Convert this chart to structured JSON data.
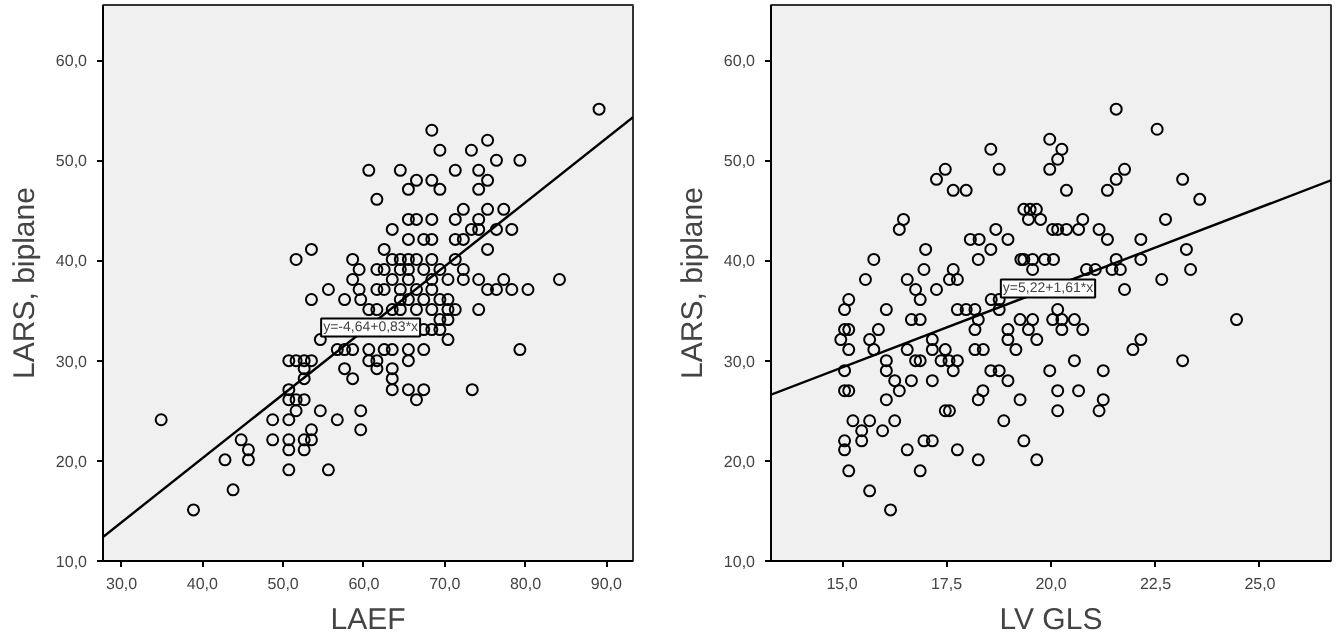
{
  "chart_data": [
    {
      "type": "scatter",
      "xlabel": "LAEF",
      "ylabel": "LARS, biplane",
      "grid": false,
      "xlim": [
        27.7,
        93.3
      ],
      "ylim": [
        10,
        65.5
      ],
      "xticks": [
        {
          "value": 30,
          "label": "30,0"
        },
        {
          "value": 40,
          "label": "40,0"
        },
        {
          "value": 50,
          "label": "50,0"
        },
        {
          "value": 60,
          "label": "60,0"
        },
        {
          "value": 70,
          "label": "70,0"
        },
        {
          "value": 80,
          "label": "80,0"
        },
        {
          "value": 90,
          "label": "90,0"
        }
      ],
      "yticks": [
        {
          "value": 10,
          "label": "10,0"
        },
        {
          "value": 20,
          "label": "20,0"
        },
        {
          "value": 30,
          "label": "30,0"
        },
        {
          "value": 40,
          "label": "40,0"
        },
        {
          "value": 50,
          "label": "50,0"
        },
        {
          "value": 60,
          "label": "60,0"
        }
      ],
      "annotations": [
        {
          "text": "y=-4,64+0,83*x",
          "x": 54.7,
          "y": 33.3
        }
      ],
      "series": [
        {
          "marker": "circle",
          "color": "#000000",
          "x": [
            89.1,
            68.4,
            69.4,
            75.3,
            73.3,
            76.4,
            79.3,
            60.6,
            64.5,
            66.5,
            68.4,
            71.3,
            74.2,
            75.3,
            65.5,
            69.4,
            74.2,
            61.6,
            72.3,
            75.3,
            77.3,
            65.5,
            66.5,
            68.4,
            71.3,
            74.2,
            63.5,
            65.5,
            67.4,
            68.4,
            71.3,
            72.3,
            73.3,
            74.2,
            76.4,
            78.3,
            51.6,
            53.5,
            62.5,
            75.3,
            58.6,
            63.5,
            64.5,
            65.5,
            66.5,
            68.4,
            71.3,
            59.4,
            61.6,
            62.5,
            64.5,
            65.5,
            67.4,
            69.4,
            72.3,
            58.6,
            63.5,
            65.5,
            68.4,
            70.4,
            72.3,
            74.2,
            77.3,
            84.2,
            55.6,
            59.4,
            61.6,
            62.5,
            64.5,
            66.5,
            68.4,
            75.3,
            76.4,
            78.3,
            80.3,
            53.5,
            57.6,
            59.6,
            64.5,
            65.5,
            67.4,
            69.4,
            70.4,
            60.6,
            61.6,
            64.5,
            66.5,
            70.4,
            74.2,
            63.5,
            68.4,
            71.3,
            67.4,
            68.4,
            69.4,
            70.4,
            69.4,
            54.6,
            70.4,
            56.7,
            57.6,
            58.6,
            60.6,
            62.5,
            63.5,
            65.5,
            67.4,
            79.3,
            50.7,
            51.6,
            52.6,
            53.5,
            60.6,
            61.6,
            65.5,
            52.6,
            57.6,
            61.6,
            63.5,
            52.6,
            58.6,
            63.5,
            50.7,
            63.5,
            65.5,
            67.4,
            73.4,
            50.7,
            51.6,
            52.6,
            66.5,
            51.6,
            54.6,
            59.6,
            34.9,
            48.7,
            50.7,
            56.7,
            53.5,
            59.6,
            44.8,
            48.7,
            50.7,
            52.6,
            53.5,
            45.7,
            50.7,
            52.6,
            42.8,
            45.7,
            50.7,
            55.6,
            43.8,
            38.9
          ],
          "values": [
            55.1,
            53.0,
            51.0,
            52.0,
            51.0,
            50.0,
            50.0,
            49.0,
            49.0,
            48.0,
            48.0,
            49.0,
            49.0,
            48.0,
            47.1,
            47.1,
            47.1,
            46.1,
            45.1,
            45.1,
            45.1,
            44.1,
            44.1,
            44.1,
            44.1,
            44.1,
            43.1,
            42.1,
            42.1,
            42.1,
            42.1,
            42.1,
            43.1,
            43.1,
            43.1,
            43.1,
            40.1,
            41.1,
            41.1,
            41.1,
            40.1,
            40.1,
            40.1,
            40.1,
            40.1,
            40.1,
            40.1,
            39.1,
            39.1,
            39.1,
            39.1,
            39.1,
            39.1,
            39.1,
            39.1,
            38.1,
            38.1,
            38.1,
            38.1,
            38.1,
            38.1,
            38.1,
            38.1,
            38.1,
            37.1,
            37.1,
            37.1,
            37.1,
            37.1,
            37.1,
            37.1,
            37.1,
            37.1,
            37.1,
            37.1,
            36.1,
            36.1,
            36.1,
            36.1,
            36.1,
            36.1,
            36.1,
            36.1,
            35.1,
            35.1,
            35.1,
            35.1,
            35.1,
            35.1,
            35.1,
            35.1,
            35.1,
            33.1,
            33.1,
            33.1,
            34.1,
            34.1,
            32.1,
            32.1,
            31.1,
            31.1,
            31.1,
            31.1,
            31.1,
            31.1,
            31.1,
            31.1,
            31.1,
            30.0,
            30.0,
            30.0,
            30.0,
            30.0,
            30.0,
            30.0,
            29.2,
            29.2,
            29.2,
            29.2,
            28.2,
            28.2,
            28.2,
            27.1,
            27.1,
            27.1,
            27.1,
            27.1,
            26.1,
            26.1,
            26.1,
            26.1,
            25.0,
            25.0,
            25.0,
            24.1,
            24.1,
            24.1,
            24.1,
            23.1,
            23.1,
            22.1,
            22.1,
            22.1,
            22.1,
            22.1,
            21.1,
            21.1,
            21.1,
            20.1,
            20.1,
            19.1,
            19.1,
            17.1,
            15.1
          ]
        },
        {
          "type": "line",
          "marker": "none",
          "color": "#000000",
          "x": [
            27.7,
            93.3
          ],
          "values": [
            12.4,
            54.3
          ]
        }
      ]
    },
    {
      "type": "scatter",
      "xlabel": "LV GLS",
      "ylabel": "LARS, biplane",
      "grid": false,
      "xlim": [
        13.3,
        26.7
      ],
      "ylim": [
        10,
        65.5
      ],
      "xticks": [
        {
          "value": 15,
          "label": "15,0"
        },
        {
          "value": 17.5,
          "label": "17,5"
        },
        {
          "value": 20,
          "label": "20,0"
        },
        {
          "value": 22.5,
          "label": "22,5"
        },
        {
          "value": 25,
          "label": "25,0"
        }
      ],
      "yticks": [
        {
          "value": 10,
          "label": "10,0"
        },
        {
          "value": 20,
          "label": "20,0"
        },
        {
          "value": 30,
          "label": "30,0"
        },
        {
          "value": 40,
          "label": "40,0"
        },
        {
          "value": 50,
          "label": "50,0"
        },
        {
          "value": 60,
          "label": "60,0"
        }
      ],
      "annotations": [
        {
          "text": "y=5,22+1,61*x",
          "x": 18.8,
          "y": 37.2
        }
      ],
      "series": [
        {
          "marker": "circle",
          "color": "#000000",
          "x": [
            21.56,
            22.54,
            19.97,
            18.56,
            20.26,
            20.16,
            17.47,
            18.76,
            19.97,
            21.76,
            17.26,
            21.56,
            23.15,
            17.66,
            17.97,
            20.37,
            21.35,
            23.56,
            19.35,
            19.5,
            19.65,
            16.47,
            19.46,
            19.75,
            20.76,
            22.74,
            16.37,
            18.68,
            20.04,
            20.16,
            20.37,
            20.66,
            21.15,
            18.07,
            18.28,
            18.97,
            21.35,
            22.15,
            17.0,
            18.56,
            23.24,
            15.76,
            18.26,
            19.28,
            19.35,
            19.56,
            19.85,
            20.06,
            21.56,
            22.15,
            15.56,
            16.56,
            17.57,
            17.76,
            22.65,
            16.96,
            17.66,
            19.56,
            20.85,
            21.06,
            21.46,
            21.66,
            23.34,
            16.76,
            17.26,
            21.76,
            16.87,
            18.57,
            18.76,
            15.06,
            16.06,
            17.76,
            17.97,
            18.18,
            20.16,
            15.16,
            18.76,
            15.06,
            15.16,
            15.87,
            16.66,
            16.87,
            18.18,
            18.26,
            18.97,
            19.26,
            19.56,
            19.46,
            20.04,
            20.26,
            20.56,
            20.76,
            20.26,
            24.44,
            14.97,
            15.66,
            17.16,
            18.97,
            19.66,
            22.15,
            15.16,
            15.76,
            16.56,
            17.16,
            17.47,
            18.18,
            18.38,
            19.16,
            21.96,
            16.06,
            16.76,
            16.87,
            17.37,
            17.56,
            17.76,
            20.56,
            23.15,
            15.06,
            16.06,
            17.66,
            18.56,
            18.76,
            19.97,
            21.25,
            16.26,
            16.66,
            17.16,
            18.97,
            15.06,
            15.16,
            16.37,
            18.37,
            20.16,
            20.66,
            16.06,
            18.26,
            19.26,
            21.25,
            17.47,
            17.57,
            20.16,
            21.15,
            15.26,
            15.66,
            16.26,
            18.87,
            15.47,
            15.97,
            15.06,
            15.47,
            16.96,
            17.16,
            19.35,
            15.06,
            16.56,
            17.76,
            18.26,
            19.66,
            15.16,
            16.87,
            15.66,
            16.16
          ],
          "values": [
            55.1,
            53.1,
            52.1,
            51.1,
            51.1,
            50.1,
            49.1,
            49.1,
            49.1,
            49.1,
            48.1,
            48.1,
            48.1,
            47.0,
            47.0,
            47.0,
            47.0,
            46.1,
            45.1,
            45.1,
            45.1,
            44.1,
            44.1,
            44.1,
            44.1,
            44.1,
            43.1,
            43.1,
            43.1,
            43.1,
            43.1,
            43.1,
            43.1,
            42.1,
            42.1,
            42.1,
            42.1,
            42.1,
            41.1,
            41.1,
            41.1,
            40.1,
            40.1,
            40.1,
            40.1,
            40.1,
            40.1,
            40.1,
            40.1,
            40.1,
            38.1,
            38.1,
            38.1,
            38.1,
            38.1,
            39.1,
            39.1,
            39.1,
            39.1,
            39.1,
            39.1,
            39.1,
            39.1,
            37.1,
            37.1,
            37.1,
            36.1,
            36.1,
            36.1,
            35.1,
            35.1,
            35.1,
            35.1,
            35.1,
            35.1,
            36.1,
            35.1,
            33.1,
            33.1,
            33.1,
            34.1,
            34.1,
            33.1,
            34.1,
            33.1,
            34.1,
            34.1,
            33.1,
            34.1,
            34.1,
            34.1,
            33.1,
            33.1,
            34.1,
            32.1,
            32.1,
            32.1,
            32.1,
            32.1,
            32.1,
            31.1,
            31.1,
            31.1,
            31.1,
            31.1,
            31.1,
            31.1,
            31.1,
            31.1,
            30.0,
            30.0,
            30.0,
            30.0,
            30.0,
            30.0,
            30.0,
            30.0,
            29.0,
            29.0,
            29.0,
            29.0,
            29.0,
            29.0,
            29.0,
            28.0,
            28.0,
            28.0,
            28.0,
            27.0,
            27.0,
            27.0,
            27.0,
            27.0,
            27.0,
            26.1,
            26.1,
            26.1,
            26.1,
            25.0,
            25.0,
            25.0,
            25.0,
            24.0,
            24.0,
            24.0,
            24.0,
            23.0,
            23.0,
            22.0,
            22.0,
            22.0,
            22.0,
            22.0,
            21.1,
            21.1,
            21.1,
            20.1,
            20.1,
            19.0,
            19.0,
            17.0,
            15.1
          ]
        },
        {
          "type": "line",
          "marker": "none",
          "color": "#000000",
          "x": [
            13.3,
            26.7
          ],
          "values": [
            26.6,
            48.0
          ]
        }
      ]
    }
  ]
}
